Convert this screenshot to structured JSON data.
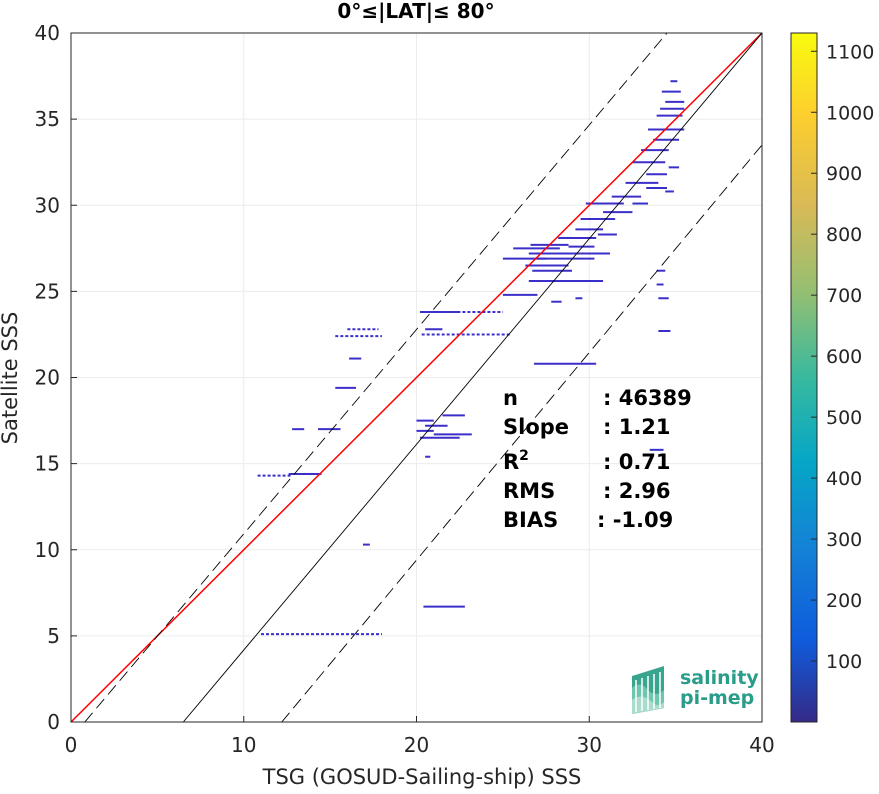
{
  "chart_data": {
    "type": "heatmap",
    "title": "0°≤|LAT|≤ 80°",
    "xlabel": "TSG (GOSUD-Sailing-ship) SSS",
    "ylabel": "Satellite SSS",
    "xlim": [
      0,
      40
    ],
    "ylim": [
      0,
      40
    ],
    "x_ticks": [
      "0",
      "10",
      "20",
      "30",
      "40"
    ],
    "y_ticks": [
      "0",
      "5",
      "10",
      "15",
      "20",
      "25",
      "30",
      "35",
      "40"
    ],
    "grid": true,
    "colorbar": {
      "range": [
        0,
        1130
      ],
      "ticks": [
        "100",
        "200",
        "300",
        "400",
        "500",
        "600",
        "700",
        "800",
        "900",
        "1000",
        "1100"
      ],
      "colormap": "parula"
    },
    "lines": [
      {
        "name": "fit",
        "color": "#ff0000",
        "style": "solid",
        "x": [
          0,
          40
        ],
        "y": [
          0,
          40
        ]
      },
      {
        "name": "one-to-one",
        "color": "#000000",
        "style": "solid",
        "x": [
          6.5,
          40
        ],
        "y": [
          0,
          40
        ]
      },
      {
        "name": "upper-bound",
        "color": "#000000",
        "style": "dashed",
        "x": [
          0.8,
          34.5
        ],
        "y": [
          0,
          40
        ]
      },
      {
        "name": "lower-bound",
        "color": "#000000",
        "style": "dashed",
        "x": [
          12.2,
          40
        ],
        "y": [
          0,
          33.5
        ]
      }
    ],
    "density_segments": [
      {
        "x0": 11,
        "x1": 18,
        "y": 5.1,
        "dotted": true
      },
      {
        "x0": 20.4,
        "x1": 22.8,
        "y": 6.7
      },
      {
        "x0": 16.9,
        "x1": 17.3,
        "y": 10.3
      },
      {
        "x0": 10.8,
        "x1": 12.8,
        "y": 14.3,
        "dotted": true
      },
      {
        "x0": 12.6,
        "x1": 14.5,
        "y": 14.4
      },
      {
        "x0": 20.5,
        "x1": 20.8,
        "y": 15.4
      },
      {
        "x0": 20.2,
        "x1": 22.5,
        "y": 16.5
      },
      {
        "x0": 21,
        "x1": 23.2,
        "y": 16.7
      },
      {
        "x0": 20,
        "x1": 21,
        "y": 16.9
      },
      {
        "x0": 12.8,
        "x1": 13.5,
        "y": 17
      },
      {
        "x0": 14.3,
        "x1": 15.6,
        "y": 17
      },
      {
        "x0": 20.5,
        "x1": 21.8,
        "y": 17.2
      },
      {
        "x0": 20,
        "x1": 21,
        "y": 17.5
      },
      {
        "x0": 21.5,
        "x1": 22.8,
        "y": 17.8
      },
      {
        "x0": 33.5,
        "x1": 34.3,
        "y": 15.8
      },
      {
        "x0": 26.8,
        "x1": 30.4,
        "y": 20.8
      },
      {
        "x0": 16.1,
        "x1": 16.8,
        "y": 21.1
      },
      {
        "x0": 15.3,
        "x1": 16.5,
        "y": 19.4
      },
      {
        "x0": 15.3,
        "x1": 18,
        "y": 22.4,
        "dotted": true
      },
      {
        "x0": 20.3,
        "x1": 25.5,
        "y": 22.5,
        "dotted": true
      },
      {
        "x0": 34,
        "x1": 34.7,
        "y": 22.7
      },
      {
        "x0": 16,
        "x1": 17.8,
        "y": 22.8,
        "dotted": true
      },
      {
        "x0": 20.5,
        "x1": 21.5,
        "y": 22.8
      },
      {
        "x0": 20.2,
        "x1": 22.5,
        "y": 23.8
      },
      {
        "x0": 21.5,
        "x1": 25,
        "y": 23.8,
        "dotted": true
      },
      {
        "x0": 34,
        "x1": 34.6,
        "y": 24.6
      },
      {
        "x0": 29.2,
        "x1": 29.6,
        "y": 24.6
      },
      {
        "x0": 27.8,
        "x1": 28.4,
        "y": 24.4
      },
      {
        "x0": 25,
        "x1": 27,
        "y": 24.8
      },
      {
        "x0": 26.5,
        "x1": 30.8,
        "y": 25.6
      },
      {
        "x0": 33.9,
        "x1": 34.3,
        "y": 25.4
      },
      {
        "x0": 33.9,
        "x1": 34.4,
        "y": 26.2
      },
      {
        "x0": 26.7,
        "x1": 29,
        "y": 26.2
      },
      {
        "x0": 26.3,
        "x1": 28.8,
        "y": 26.5
      },
      {
        "x0": 25,
        "x1": 27.5,
        "y": 26.9
      },
      {
        "x0": 27,
        "x1": 30.3,
        "y": 26.9
      },
      {
        "x0": 26.5,
        "x1": 29.5,
        "y": 27.2
      },
      {
        "x0": 25.6,
        "x1": 28.3,
        "y": 27.5
      },
      {
        "x0": 28.8,
        "x1": 30.3,
        "y": 27.6
      },
      {
        "x0": 26.6,
        "x1": 28.8,
        "y": 27.7
      },
      {
        "x0": 29.5,
        "x1": 31.2,
        "y": 27.2
      },
      {
        "x0": 28.2,
        "x1": 30.4,
        "y": 28.1
      },
      {
        "x0": 29.2,
        "x1": 30.8,
        "y": 28.6
      },
      {
        "x0": 30.5,
        "x1": 31.6,
        "y": 28.3
      },
      {
        "x0": 29.5,
        "x1": 31.5,
        "y": 29.2
      },
      {
        "x0": 30.8,
        "x1": 32.5,
        "y": 29.6
      },
      {
        "x0": 29.8,
        "x1": 32,
        "y": 30.1
      },
      {
        "x0": 32.5,
        "x1": 33.4,
        "y": 30.1
      },
      {
        "x0": 31.3,
        "x1": 33,
        "y": 30.5
      },
      {
        "x0": 33.3,
        "x1": 34.5,
        "y": 31
      },
      {
        "x0": 32.1,
        "x1": 34,
        "y": 31.3
      },
      {
        "x0": 33.3,
        "x1": 34.5,
        "y": 31.8
      },
      {
        "x0": 32.5,
        "x1": 34.4,
        "y": 32.5
      },
      {
        "x0": 33,
        "x1": 34.6,
        "y": 33.2
      },
      {
        "x0": 33.7,
        "x1": 35.2,
        "y": 33.8
      },
      {
        "x0": 33.4,
        "x1": 35.5,
        "y": 34.4
      },
      {
        "x0": 33.9,
        "x1": 35.4,
        "y": 35.2
      },
      {
        "x0": 34.1,
        "x1": 35.5,
        "y": 35.6
      },
      {
        "x0": 34.4,
        "x1": 35.5,
        "y": 36
      },
      {
        "x0": 34.2,
        "x1": 35.3,
        "y": 36.6
      },
      {
        "x0": 34.7,
        "x1": 35.1,
        "y": 37.2
      },
      {
        "x0": 34.6,
        "x1": 35.2,
        "y": 32.2
      },
      {
        "x0": 34.4,
        "x1": 34.9,
        "y": 30.8
      }
    ],
    "stats": [
      {
        "label": "n",
        "value": ": 46389"
      },
      {
        "label": "Slope",
        "value": ": 1.21"
      },
      {
        "label": "R",
        "sup": "2",
        "value": ": 0.71"
      },
      {
        "label": "RMS",
        "value": ": 2.96"
      },
      {
        "label": "BIAS",
        "value": ": -1.09"
      }
    ],
    "logo": {
      "line1": "salinity",
      "line2": "pi-mep"
    }
  }
}
